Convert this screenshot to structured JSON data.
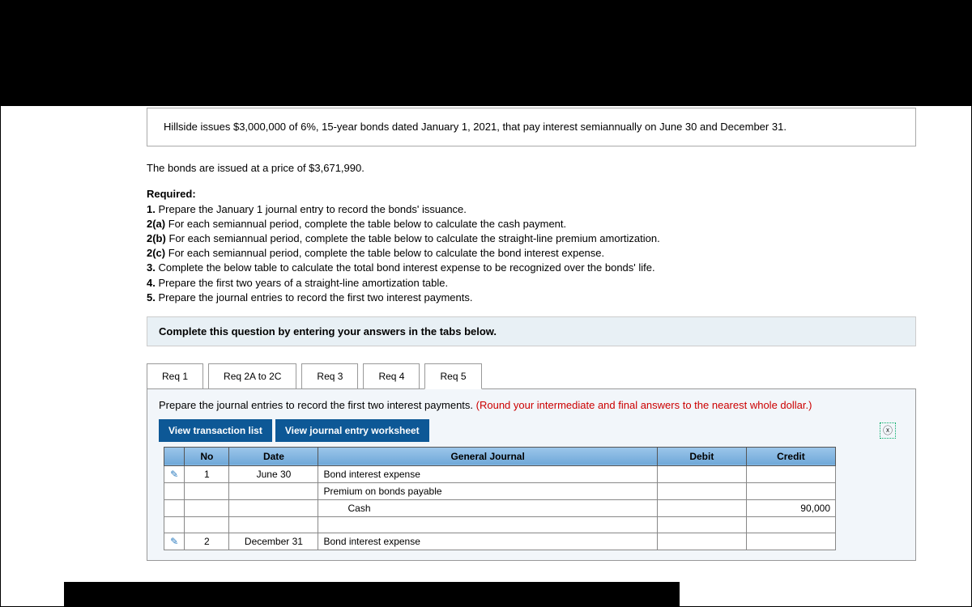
{
  "problem": {
    "intro": "Hillside issues $3,000,000 of 6%, 15-year bonds dated January 1, 2021, that pay interest semiannually on June 30 and December 31.",
    "price_line": "The bonds are issued at a price of $3,671,990.",
    "required_heading": "Required:",
    "req_lines": [
      "1. Prepare the January 1 journal entry to record the bonds' issuance.",
      "2(a) For each semiannual period, complete the table below to calculate the cash payment.",
      "2(b) For each semiannual period, complete the table below to calculate the straight-line premium amortization.",
      "2(c) For each semiannual period, complete the table below to calculate the bond interest expense.",
      "3. Complete the below table to calculate the total bond interest expense to be recognized over the bonds' life.",
      "4. Prepare the first two years of a straight-line amortization table.",
      "5. Prepare the journal entries to record the first two interest payments."
    ]
  },
  "instruction_bar": "Complete this question by entering your answers in the tabs below.",
  "tabs": [
    "Req 1",
    "Req 2A to 2C",
    "Req 3",
    "Req 4",
    "Req 5"
  ],
  "active_tab_index": 4,
  "req5": {
    "prompt_main": "Prepare the journal entries to record the first two interest payments. ",
    "prompt_note": "(Round your intermediate and final answers to the nearest whole dollar.)",
    "view_buttons": [
      "View transaction list",
      "View journal entry worksheet"
    ],
    "columns": [
      "No",
      "Date",
      "General Journal",
      "Debit",
      "Credit"
    ],
    "rows": [
      {
        "edit": true,
        "no": "1",
        "date": "June 30",
        "gj": "Bond interest expense",
        "indent": 0,
        "debit": "",
        "credit": ""
      },
      {
        "edit": false,
        "no": "",
        "date": "",
        "gj": "Premium on bonds payable",
        "indent": 0,
        "debit": "",
        "credit": ""
      },
      {
        "edit": false,
        "no": "",
        "date": "",
        "gj": "Cash",
        "indent": 2,
        "debit": "",
        "credit": "90,000"
      },
      {
        "edit": false,
        "no": "",
        "date": "",
        "gj": "",
        "indent": 0,
        "debit": "",
        "credit": ""
      },
      {
        "edit": true,
        "no": "2",
        "date": "December 31",
        "gj": "Bond interest expense",
        "indent": 0,
        "debit": "",
        "credit": ""
      }
    ]
  },
  "colors": {
    "header_gradient_top": "#9cc6ea",
    "header_gradient_bottom": "#6fa8d8",
    "button_bg": "#0d5896",
    "note_color": "#c00",
    "panel_bg": "#f2f6fa",
    "instruction_bg": "#e8f0f5"
  }
}
